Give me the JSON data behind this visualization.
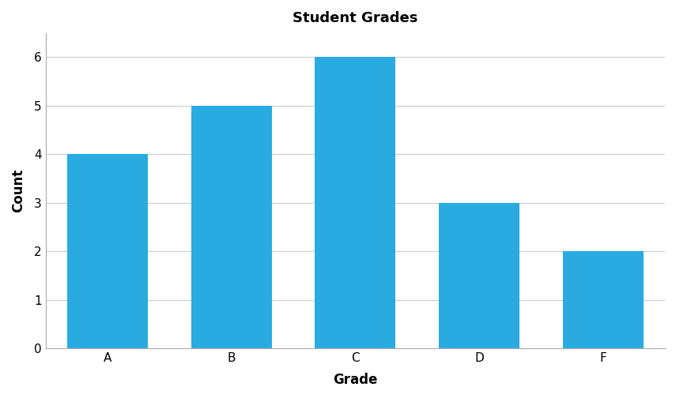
{
  "categories": [
    "A",
    "B",
    "C",
    "D",
    "F"
  ],
  "values": [
    4,
    5,
    6,
    3,
    2
  ],
  "bar_color": "#29ABE2",
  "title": "Student Grades",
  "xlabel": "Grade",
  "ylabel": "Count",
  "ylim": [
    0,
    6.5
  ],
  "yticks": [
    0,
    1,
    2,
    3,
    4,
    5,
    6
  ],
  "title_fontsize": 13,
  "label_fontsize": 12,
  "tick_fontsize": 11,
  "bar_width": 0.65,
  "background_color": "#ffffff",
  "grid_color": "#cccccc",
  "edge_color": "none"
}
